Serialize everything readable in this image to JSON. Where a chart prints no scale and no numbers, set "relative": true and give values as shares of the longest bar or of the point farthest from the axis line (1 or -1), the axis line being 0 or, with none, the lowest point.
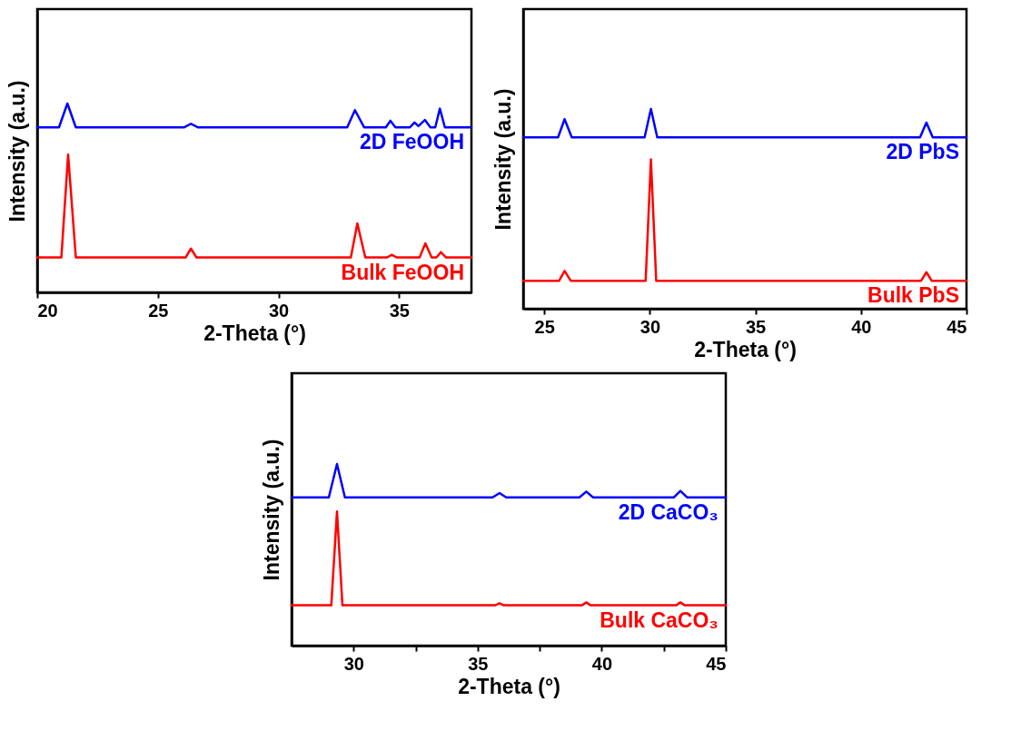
{
  "chart_data": [
    {
      "type": "line",
      "relative": true,
      "xlabel": "2-Theta (°)",
      "ylabel": "Intensity (a.u.)",
      "xlim": [
        20,
        38
      ],
      "xticks": [
        20,
        25,
        30,
        35
      ],
      "tick_labels": "x",
      "series": [
        {
          "name": "2D FeOOH",
          "color": "#0000ff",
          "x": [
            20,
            20.9,
            21.25,
            21.6,
            26.1,
            26.37,
            26.65,
            32.85,
            33.17,
            33.55,
            34.45,
            34.64,
            34.85,
            35.45,
            35.64,
            35.8,
            36.07,
            36.3,
            36.5,
            36.69,
            36.9,
            38
          ],
          "values": [
            0.874,
            0.874,
            1.0,
            0.874,
            0.874,
            0.893,
            0.874,
            0.874,
            0.965,
            0.874,
            0.874,
            0.909,
            0.874,
            0.874,
            0.9,
            0.88,
            0.913,
            0.874,
            0.874,
            0.973,
            0.874,
            0.874
          ]
        },
        {
          "name": "Bulk FeOOH",
          "color": "#ff0000",
          "x": [
            20,
            21.0,
            21.28,
            21.6,
            26.15,
            26.37,
            26.6,
            33.0,
            33.27,
            33.6,
            34.5,
            34.7,
            34.9,
            35.85,
            36.09,
            36.35,
            36.55,
            36.73,
            36.95,
            38
          ],
          "values": [
            0.185,
            0.185,
            0.73,
            0.185,
            0.185,
            0.232,
            0.185,
            0.185,
            0.365,
            0.185,
            0.185,
            0.199,
            0.185,
            0.185,
            0.26,
            0.185,
            0.185,
            0.213,
            0.185,
            0.185
          ]
        }
      ]
    },
    {
      "type": "line",
      "relative": true,
      "xlabel": "2-Theta (°)",
      "ylabel": "Intensity (a.u.)",
      "xlim": [
        24,
        45
      ],
      "xticks": [
        25,
        30,
        35,
        40,
        45
      ],
      "tick_labels": "x",
      "series": [
        {
          "name": "2D PbS",
          "color": "#0000ff",
          "x": [
            24,
            25.65,
            25.96,
            26.3,
            29.75,
            30.05,
            30.35,
            42.8,
            43.1,
            43.4,
            45
          ],
          "values": [
            0.858,
            0.858,
            0.949,
            0.858,
            0.858,
            1.0,
            0.858,
            0.858,
            0.932,
            0.858,
            0.858
          ]
        },
        {
          "name": "Bulk PbS",
          "color": "#ff0000",
          "x": [
            24,
            25.7,
            25.96,
            26.25,
            29.8,
            30.05,
            30.3,
            42.85,
            43.1,
            43.35,
            45
          ],
          "values": [
            0.14,
            0.14,
            0.189,
            0.14,
            0.14,
            0.748,
            0.14,
            0.14,
            0.183,
            0.14,
            0.14
          ]
        }
      ]
    },
    {
      "type": "line",
      "relative": true,
      "xlabel": "2-Theta (°)",
      "ylabel": "Intensity (a.u.)",
      "xlim": [
        27.5,
        45
      ],
      "xticks": [
        30,
        {
          "value": 32.5,
          "label": null
        },
        35,
        {
          "value": 37.5,
          "label": null
        },
        40,
        {
          "value": 42.5,
          "label": null
        },
        45
      ],
      "tick_labels": "x",
      "series": [
        {
          "name": "2D CaCO₃",
          "color": "#0000ff",
          "x": [
            27.5,
            29.0,
            29.33,
            29.65,
            35.6,
            35.88,
            36.15,
            39.1,
            39.38,
            39.65,
            42.9,
            43.17,
            43.45,
            45
          ],
          "values": [
            0.816,
            0.816,
            1.0,
            0.816,
            0.816,
            0.84,
            0.816,
            0.816,
            0.848,
            0.816,
            0.816,
            0.852,
            0.816,
            0.816
          ]
        },
        {
          "name": "Bulk CaCO₃",
          "color": "#ff0000",
          "x": [
            27.5,
            29.1,
            29.33,
            29.55,
            35.7,
            35.88,
            36.05,
            39.2,
            39.38,
            39.55,
            43.0,
            43.17,
            43.35,
            45
          ],
          "values": [
            0.222,
            0.222,
            0.739,
            0.222,
            0.222,
            0.233,
            0.222,
            0.222,
            0.238,
            0.222,
            0.222,
            0.238,
            0.222,
            0.222
          ]
        }
      ]
    }
  ]
}
